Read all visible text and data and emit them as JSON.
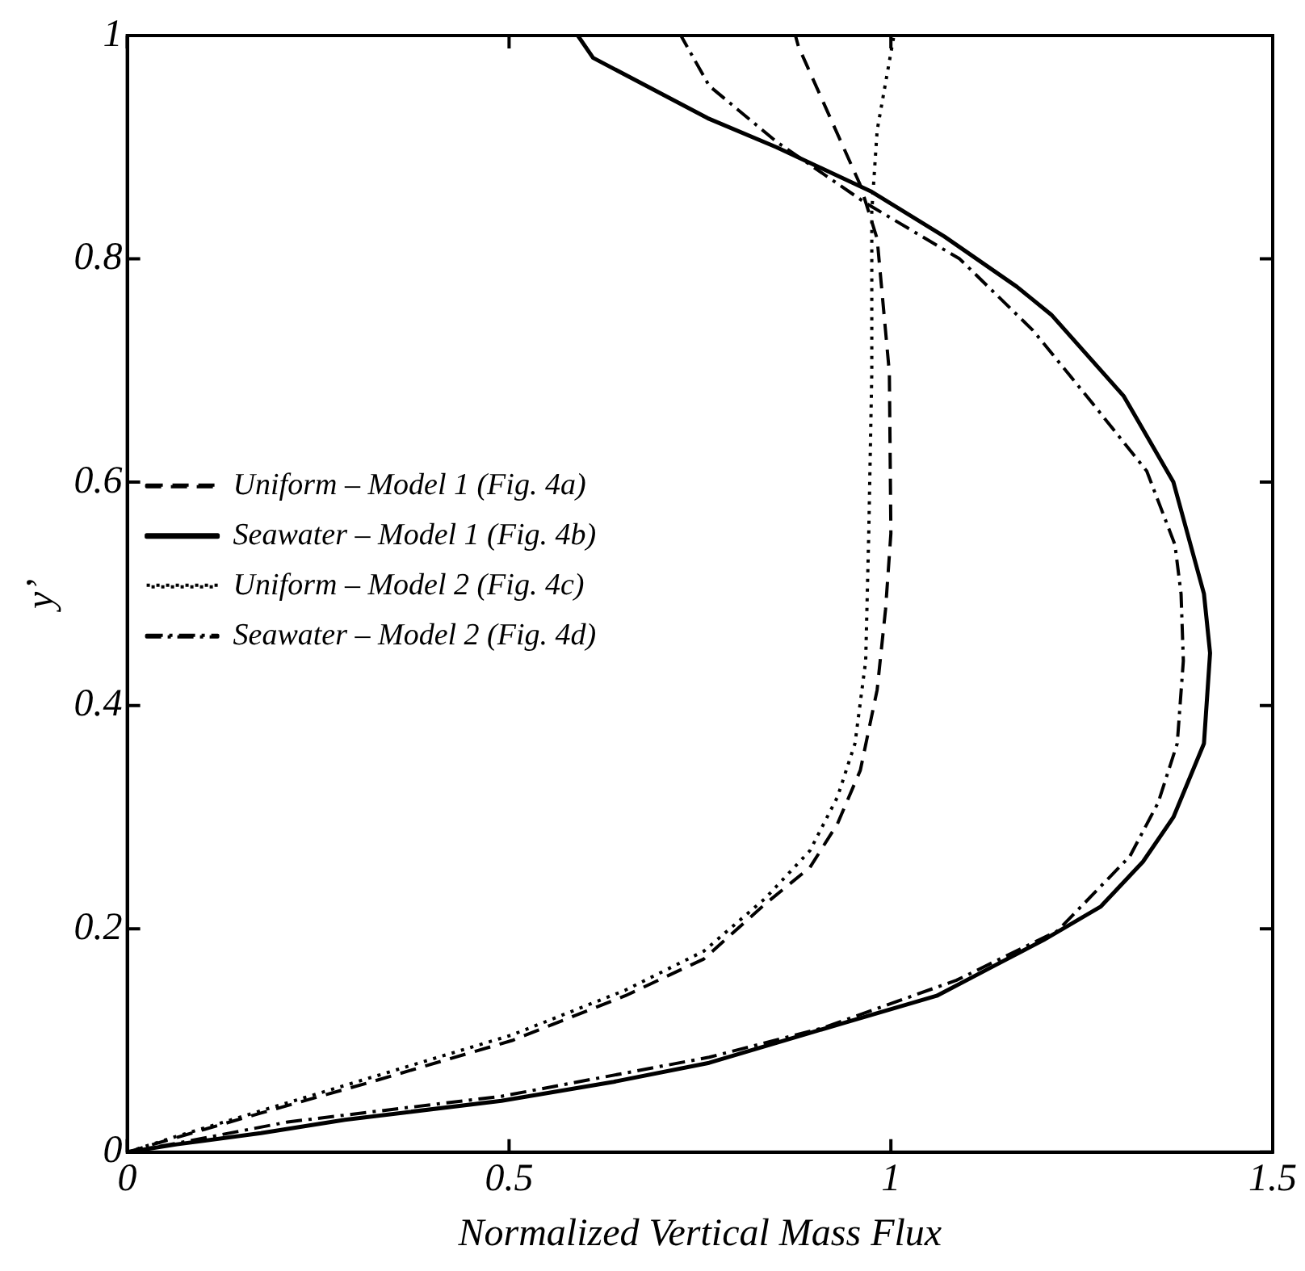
{
  "chart_data": {
    "type": "line",
    "xlabel": "Normalized Vertical Mass Flux",
    "ylabel": "y’",
    "xlim": [
      0,
      1.5
    ],
    "ylim": [
      0,
      1
    ],
    "xticks": [
      0,
      0.5,
      1,
      1.5
    ],
    "yticks": [
      0,
      0.2,
      0.4,
      0.6,
      0.8,
      1
    ],
    "grid": false,
    "legend": "left",
    "marker": "none",
    "series": [
      {
        "name": "Uniform – Model 1 (Fig. 4a)",
        "color": "#000000",
        "line_style": "dashed",
        "x": [
          0,
          0.064,
          0.175,
          0.32,
          0.504,
          0.652,
          0.755,
          0.835,
          0.894,
          0.93,
          0.96,
          0.982,
          0.993,
          1.0,
          0.998,
          0.982,
          0.96,
          0.879,
          0.875
        ],
        "values": [
          0,
          0.013,
          0.035,
          0.063,
          0.1,
          0.14,
          0.173,
          0.222,
          0.255,
          0.294,
          0.342,
          0.414,
          0.486,
          0.554,
          0.698,
          0.818,
          0.866,
          0.99,
          1
        ]
      },
      {
        "name": "Seawater – Model 1 (Fig. 4b)",
        "color": "#000000",
        "line_style": "solid",
        "x": [
          0,
          0.065,
          0.175,
          0.285,
          0.49,
          0.637,
          0.762,
          0.895,
          1.06,
          1.13,
          1.2,
          1.275,
          1.33,
          1.37,
          1.41,
          1.418,
          1.41,
          1.37,
          1.305,
          1.21,
          1.165,
          1.07,
          0.975,
          0.85,
          0.76,
          0.61,
          0.59
        ],
        "values": [
          0,
          0.007,
          0.017,
          0.029,
          0.046,
          0.063,
          0.08,
          0.107,
          0.14,
          0.165,
          0.19,
          0.22,
          0.26,
          0.3,
          0.366,
          0.447,
          0.5,
          0.6,
          0.677,
          0.75,
          0.775,
          0.82,
          0.86,
          0.9,
          0.926,
          0.98,
          1
        ]
      },
      {
        "name": "Uniform – Model 2 (Fig. 4c)",
        "color": "#000000",
        "line_style": "dotted",
        "x": [
          0,
          0.064,
          0.175,
          0.32,
          0.504,
          0.652,
          0.755,
          0.835,
          0.894,
          0.93,
          0.953,
          0.967,
          0.971,
          0.975,
          0.975,
          0.982,
          1.004
        ],
        "values": [
          0,
          0.014,
          0.037,
          0.067,
          0.105,
          0.145,
          0.18,
          0.227,
          0.27,
          0.318,
          0.366,
          0.44,
          0.554,
          0.698,
          0.843,
          0.915,
          1
        ]
      },
      {
        "name": "Seawater – Model 2 (Fig. 4d)",
        "color": "#000000",
        "line_style": "dashdot",
        "x": [
          0,
          0.065,
          0.21,
          0.49,
          0.762,
          0.91,
          1.086,
          1.218,
          1.313,
          1.35,
          1.375,
          1.383,
          1.38,
          1.372,
          1.335,
          1.26,
          1.186,
          1.09,
          0.967,
          0.85,
          0.762,
          0.725
        ],
        "values": [
          0,
          0.008,
          0.027,
          0.05,
          0.085,
          0.111,
          0.154,
          0.198,
          0.265,
          0.313,
          0.366,
          0.44,
          0.5,
          0.544,
          0.61,
          0.674,
          0.736,
          0.8,
          0.85,
          0.905,
          0.955,
          1
        ]
      }
    ]
  }
}
